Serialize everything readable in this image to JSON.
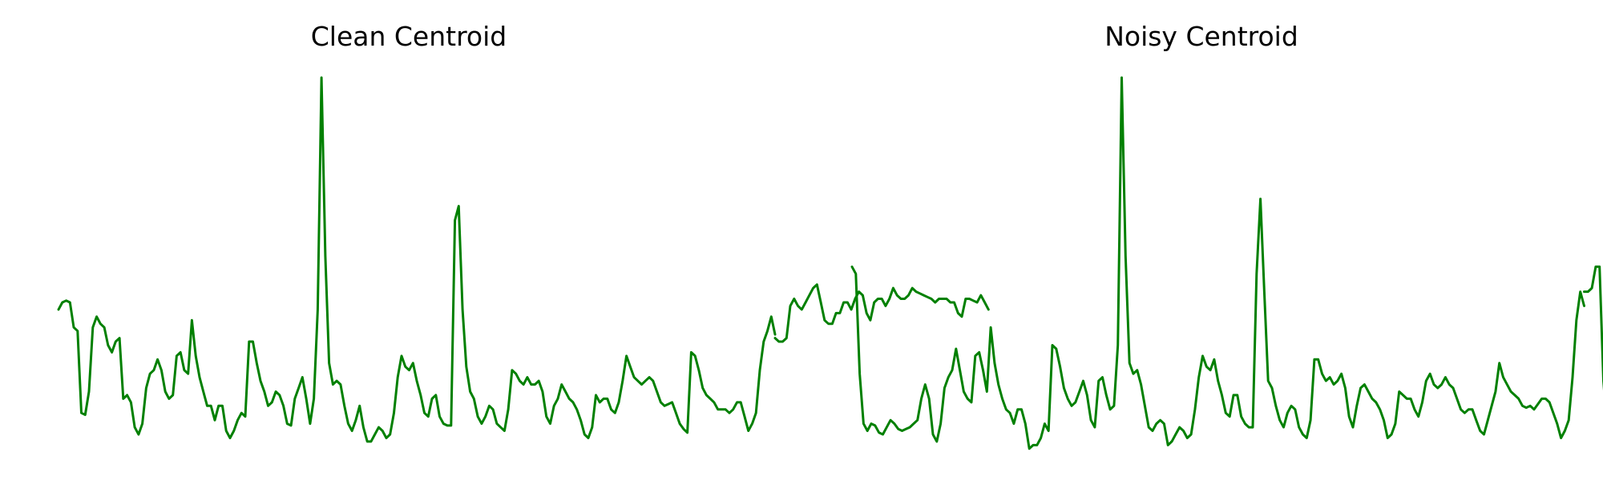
{
  "chart_data": [
    {
      "type": "line",
      "title": "Clean Centroid",
      "xlabel": "",
      "ylabel": "",
      "grid": false,
      "axes_visible": false,
      "line_color": "#008000",
      "xlim": [
        0,
        184
      ],
      "ylim": [
        0,
        100
      ],
      "series": [
        {
          "values": [
            35,
            37,
            37.5,
            37,
            30,
            29,
            6,
            5.5,
            12,
            30,
            33,
            31,
            30,
            25,
            23,
            26,
            27,
            10,
            11,
            9,
            2,
            0,
            3,
            13,
            17,
            18,
            21,
            18,
            12,
            10,
            11,
            22,
            23,
            18,
            17,
            32,
            22,
            16,
            12,
            8,
            8,
            4,
            8,
            8,
            1,
            -1,
            1,
            4,
            6,
            5,
            26,
            26,
            20,
            15,
            12,
            8,
            9,
            12,
            11,
            8,
            3,
            2.5,
            10,
            13,
            16,
            10,
            3,
            10,
            35,
            100,
            50,
            20,
            14,
            15,
            14,
            8,
            3,
            1,
            4,
            8,
            2,
            -2,
            -2,
            0,
            2,
            1,
            -1,
            0,
            6,
            16,
            22,
            19,
            18,
            20,
            15,
            11,
            6,
            5,
            10,
            11,
            5,
            3,
            2.5,
            2.5,
            60,
            64,
            35,
            19,
            12,
            10,
            5,
            3,
            5,
            8,
            7,
            3,
            2,
            1,
            7,
            18,
            17,
            15,
            14,
            16,
            14,
            14,
            15,
            12,
            5,
            3,
            8,
            10,
            14,
            12,
            10,
            9,
            7,
            4,
            0,
            -1,
            2,
            11,
            9,
            10,
            10,
            7,
            6,
            9,
            15,
            22,
            19,
            16,
            15,
            14,
            15,
            16,
            15,
            12,
            9,
            8,
            8.5,
            9,
            6,
            3,
            1.5,
            0.5,
            23,
            22,
            18,
            13,
            11,
            10,
            9,
            7,
            7,
            7,
            6,
            7,
            9,
            9,
            5,
            1,
            3,
            6,
            18,
            26,
            29,
            33,
            28
          ]
        },
        {
          "values": [
            27,
            26,
            26,
            27,
            36,
            38,
            36,
            35,
            37,
            39,
            41,
            42,
            37,
            32,
            31,
            31,
            34,
            34,
            37,
            37,
            35,
            38,
            40,
            39,
            34,
            32,
            37,
            38,
            38,
            36,
            38,
            41,
            39,
            38,
            38,
            39,
            41,
            40,
            39.5,
            39,
            38.5,
            38,
            37,
            38,
            38,
            38,
            37,
            37,
            34,
            33,
            38,
            38,
            37.5,
            37,
            39,
            37,
            35
          ]
        }
      ]
    },
    {
      "type": "line",
      "title": "Noisy Centroid",
      "xlabel": "",
      "ylabel": "",
      "grid": false,
      "axes_visible": false,
      "line_color": "#008000",
      "xlim": [
        0,
        182
      ],
      "ylim": [
        0,
        100
      ],
      "series": [
        {
          "values": [
            47,
            45,
            17,
            3,
            1,
            3,
            2.5,
            0.5,
            0,
            2,
            4,
            3,
            1.5,
            1,
            1.5,
            2,
            3,
            4,
            10,
            14,
            10,
            0,
            -2,
            3,
            13,
            16,
            18,
            24,
            18,
            12,
            10,
            9,
            22,
            23,
            18,
            12,
            30,
            20,
            14,
            10,
            7,
            6,
            3,
            7,
            7,
            3,
            -4,
            -3,
            -3,
            -1,
            3,
            1,
            25,
            24,
            19,
            13,
            10,
            8,
            9,
            12,
            15,
            11,
            4,
            2,
            15,
            16,
            11,
            7,
            8,
            25,
            100,
            50,
            20,
            17,
            18,
            14,
            8,
            2,
            1,
            3,
            4,
            3,
            -3,
            -2,
            0,
            2,
            1,
            -1,
            0,
            7,
            16,
            22,
            19,
            18,
            21,
            15,
            11,
            6,
            5,
            11,
            11,
            5,
            3,
            2,
            2,
            45,
            66,
            40,
            15,
            13,
            8,
            4,
            2,
            6,
            8,
            7,
            2,
            0,
            -1,
            4,
            21,
            21,
            17,
            15,
            16,
            14,
            15,
            17,
            13,
            5,
            2,
            8,
            13,
            14,
            12,
            10,
            9,
            7,
            4,
            -1,
            0,
            3,
            12,
            11,
            10,
            10,
            7,
            5,
            9,
            15,
            17,
            14,
            13,
            14,
            16,
            14,
            13,
            10,
            7,
            6,
            7,
            7,
            4,
            1,
            0,
            4,
            8,
            12,
            20,
            16,
            14,
            12,
            11,
            10,
            8,
            7.5,
            8,
            7,
            8.5,
            10,
            10,
            9,
            6,
            3,
            -1,
            1,
            4,
            16,
            32,
            40,
            36
          ],
          "dash_index": 190
        },
        {
          "values": [
            40,
            40,
            41,
            47,
            47,
            15,
            2,
            1,
            2,
            2,
            1.5,
            1.5,
            1.5,
            1,
            0.5,
            0.5,
            1,
            2,
            2,
            1,
            0,
            1.5,
            2,
            1.5,
            2,
            1.5,
            2,
            2.5,
            2,
            1.5,
            2,
            2,
            1.5,
            1.5,
            2,
            2.5,
            2.5,
            2.5,
            3,
            2.5,
            2.5,
            2.5,
            2.5,
            2,
            2,
            2.5,
            2,
            2.5,
            2.5,
            5,
            12,
            20,
            42,
            50,
            52,
            45
          ]
        }
      ]
    }
  ]
}
